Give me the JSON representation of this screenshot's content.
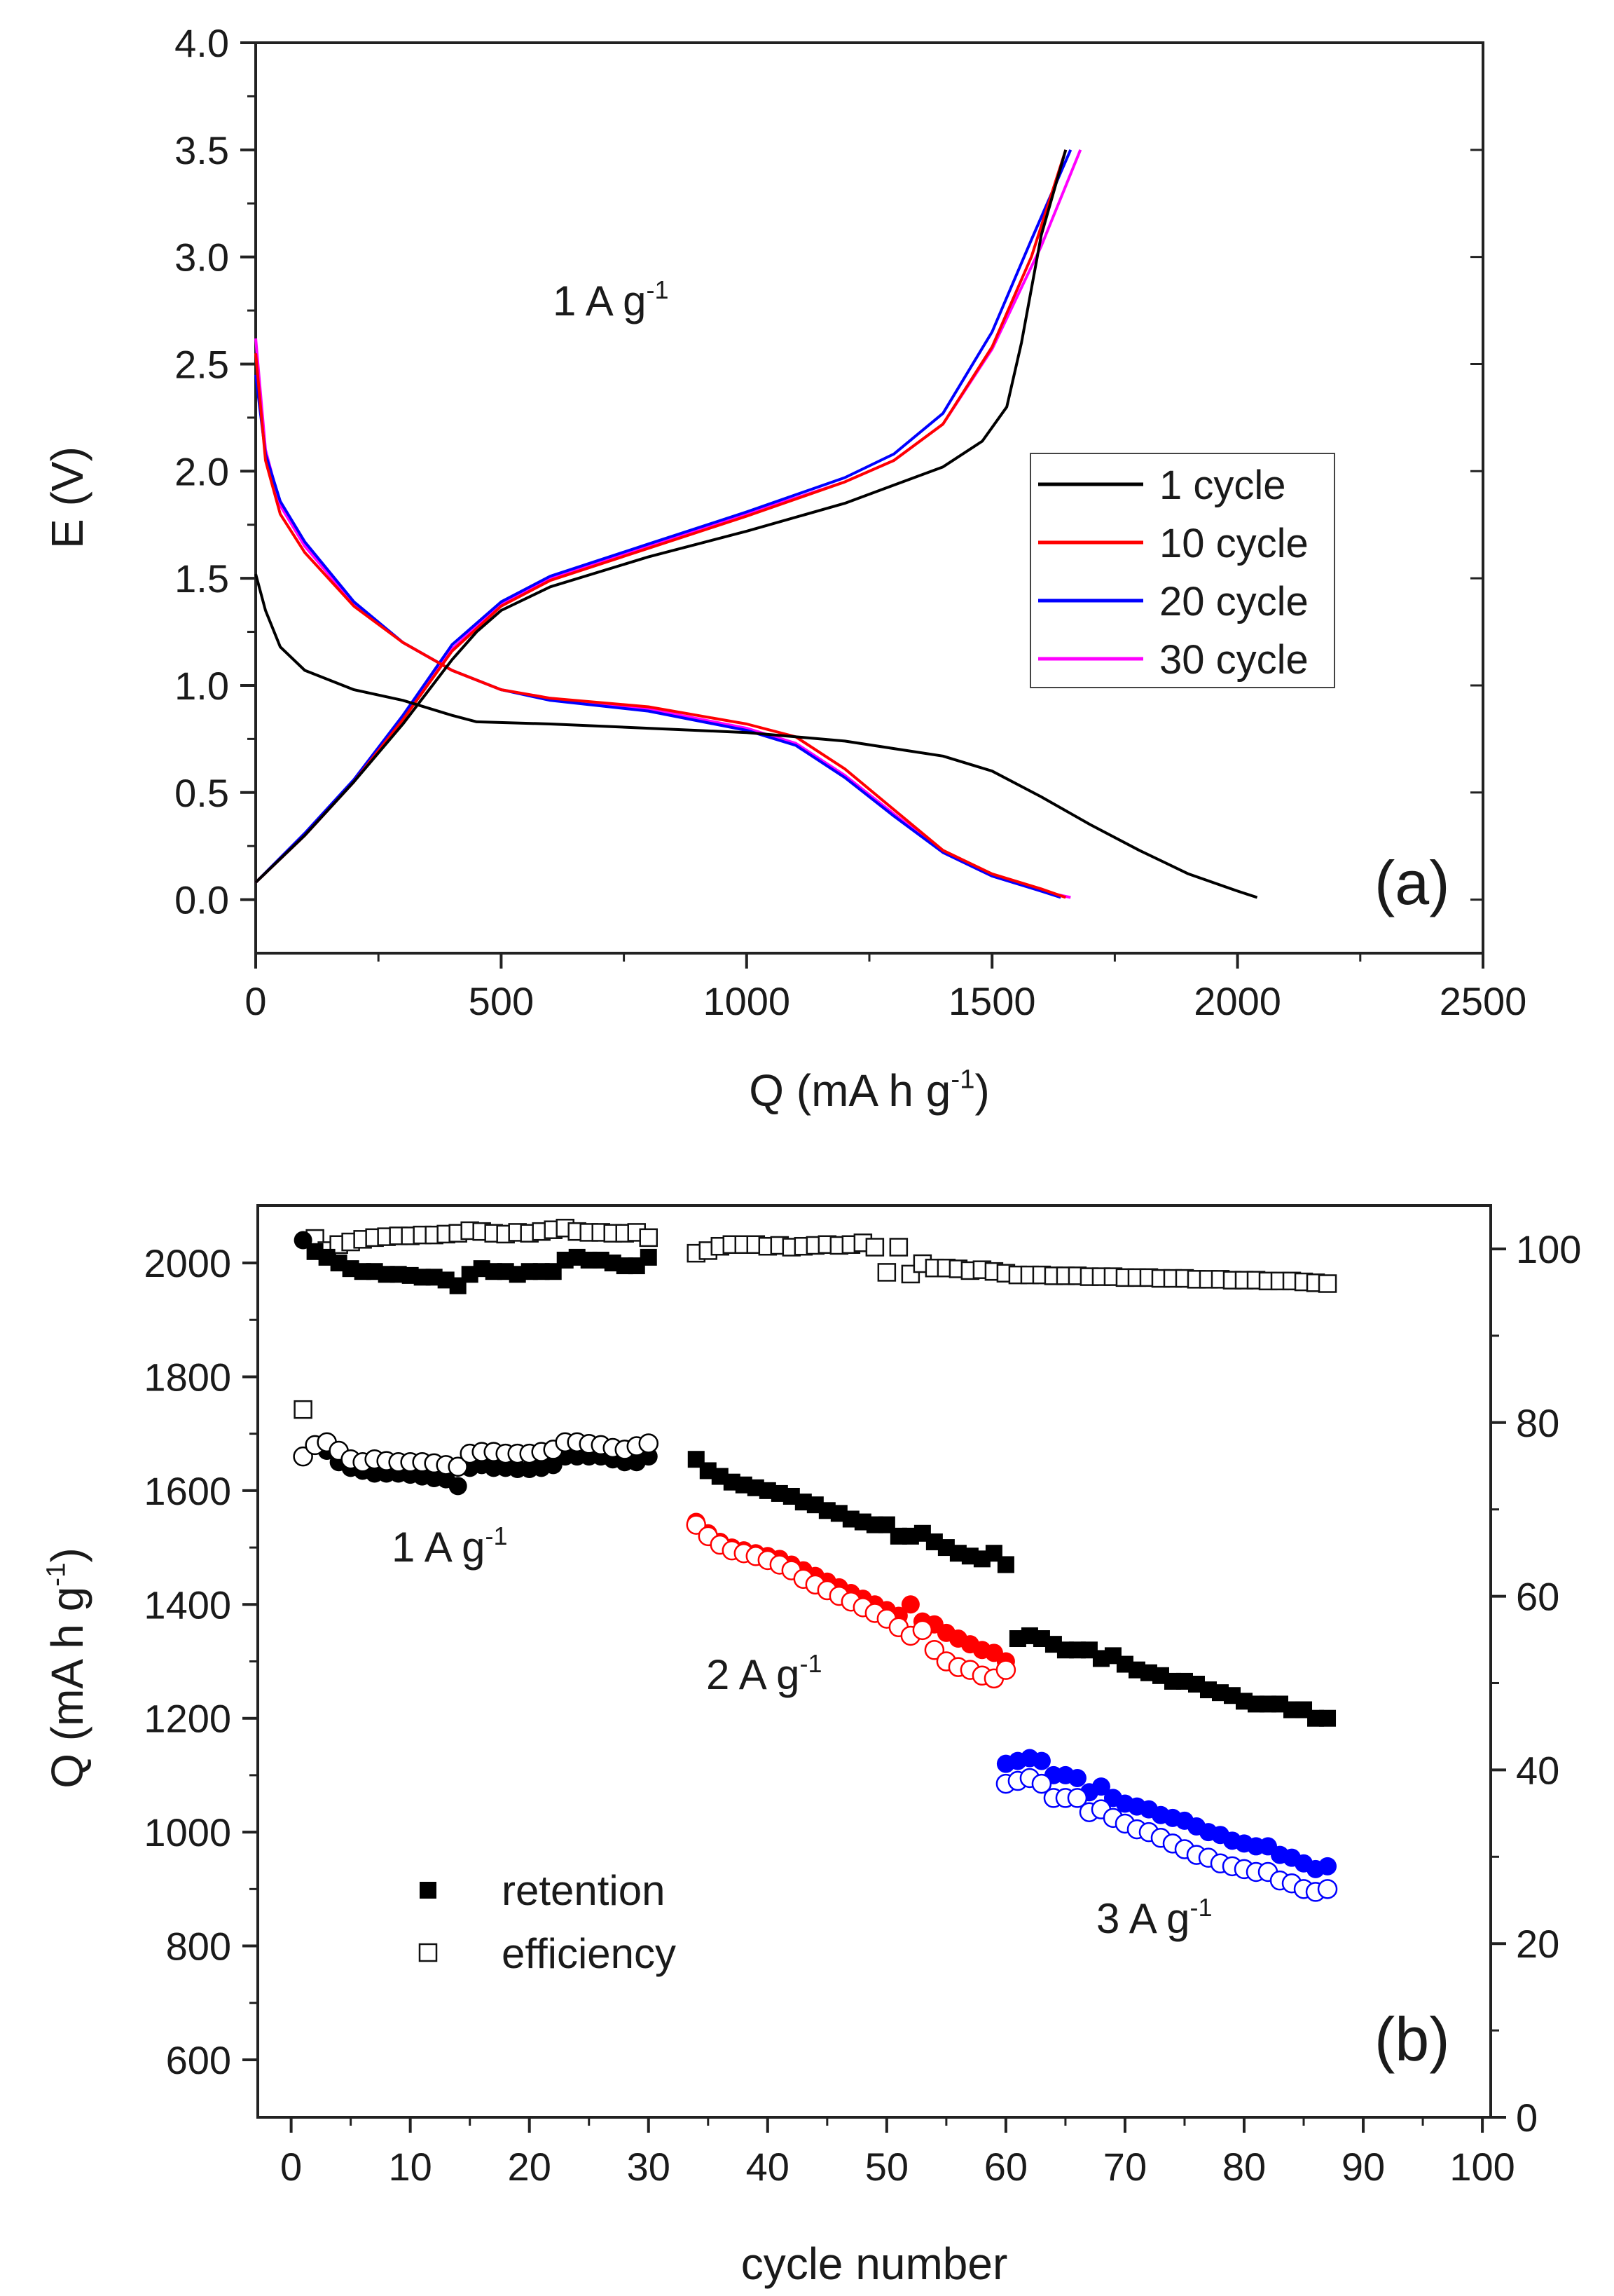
{
  "chart_data": [
    {
      "type": "line",
      "panel_label": "(a)",
      "xlabel": "Q (mA h g",
      "xlabel_sup": "-1",
      "xlabel_end": ")",
      "ylabel": "E (V)",
      "xlim": [
        0,
        2500
      ],
      "ylim": [
        -0.25,
        4.0
      ],
      "xticks": [
        0,
        500,
        1000,
        1500,
        2000,
        2500
      ],
      "yticks": [
        "0.0",
        "0.5",
        "1.0",
        "1.5",
        "2.0",
        "2.5",
        "3.0",
        "3.5",
        "4.0"
      ],
      "annotation": {
        "text": "1 A g",
        "sup": "-1"
      },
      "legend_position": "center-right",
      "series": [
        {
          "name": "1 cycle",
          "color": "#000000",
          "discharge": [
            [
              0,
              1.52
            ],
            [
              20,
              1.35
            ],
            [
              50,
              1.18
            ],
            [
              100,
              1.07
            ],
            [
              200,
              0.98
            ],
            [
              300,
              0.93
            ],
            [
              400,
              0.86
            ],
            [
              450,
              0.83
            ],
            [
              600,
              0.82
            ],
            [
              800,
              0.8
            ],
            [
              1000,
              0.78
            ],
            [
              1200,
              0.74
            ],
            [
              1400,
              0.67
            ],
            [
              1500,
              0.6
            ],
            [
              1600,
              0.48
            ],
            [
              1700,
              0.35
            ],
            [
              1800,
              0.23
            ],
            [
              1900,
              0.12
            ],
            [
              2000,
              0.04
            ],
            [
              2040,
              0.01
            ]
          ],
          "charge": [
            [
              0,
              0.08
            ],
            [
              100,
              0.3
            ],
            [
              200,
              0.55
            ],
            [
              300,
              0.82
            ],
            [
              400,
              1.12
            ],
            [
              450,
              1.25
            ],
            [
              500,
              1.35
            ],
            [
              600,
              1.46
            ],
            [
              800,
              1.6
            ],
            [
              1000,
              1.72
            ],
            [
              1200,
              1.85
            ],
            [
              1400,
              2.02
            ],
            [
              1480,
              2.14
            ],
            [
              1530,
              2.3
            ],
            [
              1560,
              2.6
            ],
            [
              1600,
              3.1
            ],
            [
              1650,
              3.5
            ]
          ]
        },
        {
          "name": "10 cycle",
          "color": "#ff0000",
          "discharge": [
            [
              0,
              2.55
            ],
            [
              20,
              2.05
            ],
            [
              50,
              1.8
            ],
            [
              100,
              1.62
            ],
            [
              200,
              1.37
            ],
            [
              300,
              1.2
            ],
            [
              400,
              1.07
            ],
            [
              500,
              0.98
            ],
            [
              600,
              0.94
            ],
            [
              800,
              0.9
            ],
            [
              1000,
              0.82
            ],
            [
              1100,
              0.76
            ],
            [
              1200,
              0.61
            ],
            [
              1300,
              0.42
            ],
            [
              1400,
              0.23
            ],
            [
              1500,
              0.12
            ],
            [
              1600,
              0.05
            ],
            [
              1650,
              0.01
            ]
          ],
          "charge": [
            [
              0,
              0.08
            ],
            [
              100,
              0.3
            ],
            [
              200,
              0.55
            ],
            [
              300,
              0.84
            ],
            [
              400,
              1.16
            ],
            [
              500,
              1.37
            ],
            [
              600,
              1.49
            ],
            [
              800,
              1.64
            ],
            [
              1000,
              1.79
            ],
            [
              1200,
              1.95
            ],
            [
              1300,
              2.05
            ],
            [
              1400,
              2.22
            ],
            [
              1500,
              2.58
            ],
            [
              1580,
              3.0
            ],
            [
              1650,
              3.5
            ]
          ]
        },
        {
          "name": "20 cycle",
          "color": "#0000ff",
          "discharge": [
            [
              0,
              2.45
            ],
            [
              20,
              2.08
            ],
            [
              50,
              1.86
            ],
            [
              100,
              1.67
            ],
            [
              200,
              1.39
            ],
            [
              300,
              1.2
            ],
            [
              400,
              1.07
            ],
            [
              500,
              0.98
            ],
            [
              600,
              0.93
            ],
            [
              800,
              0.88
            ],
            [
              1000,
              0.79
            ],
            [
              1100,
              0.72
            ],
            [
              1200,
              0.57
            ],
            [
              1300,
              0.39
            ],
            [
              1400,
              0.22
            ],
            [
              1500,
              0.11
            ],
            [
              1600,
              0.04
            ],
            [
              1640,
              0.01
            ]
          ],
          "charge": [
            [
              0,
              0.08
            ],
            [
              100,
              0.31
            ],
            [
              200,
              0.56
            ],
            [
              300,
              0.86
            ],
            [
              400,
              1.19
            ],
            [
              500,
              1.39
            ],
            [
              600,
              1.51
            ],
            [
              800,
              1.66
            ],
            [
              1000,
              1.81
            ],
            [
              1200,
              1.97
            ],
            [
              1300,
              2.08
            ],
            [
              1400,
              2.27
            ],
            [
              1500,
              2.65
            ],
            [
              1580,
              3.08
            ],
            [
              1660,
              3.5
            ]
          ]
        },
        {
          "name": "30 cycle",
          "color": "#ff00ff",
          "discharge": [
            [
              0,
              2.62
            ],
            [
              20,
              2.1
            ],
            [
              50,
              1.84
            ],
            [
              100,
              1.65
            ],
            [
              200,
              1.38
            ],
            [
              300,
              1.2
            ],
            [
              400,
              1.07
            ],
            [
              500,
              0.98
            ],
            [
              600,
              0.94
            ],
            [
              800,
              0.89
            ],
            [
              1000,
              0.8
            ],
            [
              1100,
              0.73
            ],
            [
              1200,
              0.58
            ],
            [
              1300,
              0.4
            ],
            [
              1400,
              0.22
            ],
            [
              1500,
              0.11
            ],
            [
              1600,
              0.04
            ],
            [
              1660,
              0.01
            ]
          ],
          "charge": [
            [
              0,
              0.08
            ],
            [
              100,
              0.3
            ],
            [
              200,
              0.55
            ],
            [
              300,
              0.85
            ],
            [
              400,
              1.17
            ],
            [
              500,
              1.38
            ],
            [
              600,
              1.5
            ],
            [
              800,
              1.65
            ],
            [
              1000,
              1.8
            ],
            [
              1200,
              1.95
            ],
            [
              1300,
              2.05
            ],
            [
              1400,
              2.22
            ],
            [
              1500,
              2.57
            ],
            [
              1600,
              3.05
            ],
            [
              1680,
              3.5
            ]
          ]
        }
      ]
    },
    {
      "type": "scatter",
      "panel_label": "(b)",
      "xlabel": "cycle number",
      "ylabel": "Q (mA h g",
      "ylabel_sup": "-1",
      "ylabel_end": ")",
      "xlim": [
        -2.8,
        100.7
      ],
      "ylim": [
        499,
        2101
      ],
      "y2lim": [
        0,
        105
      ],
      "xticks": [
        0,
        10,
        20,
        30,
        40,
        50,
        60,
        70,
        80,
        90,
        100
      ],
      "yticks": [
        600,
        800,
        1000,
        1200,
        1400,
        1600,
        1800,
        2000
      ],
      "y2ticks": [
        0,
        20,
        40,
        60,
        80,
        100
      ],
      "legend": [
        {
          "name": "retention",
          "marker": "filled-square"
        },
        {
          "name": "efficiency",
          "marker": "open-square"
        }
      ],
      "legend_position": "bottom-left",
      "annotations": [
        {
          "text": "1 A g",
          "sup": "-1"
        },
        {
          "text": "2 A g",
          "sup": "-1"
        },
        {
          "text": "3 A g",
          "sup": "-1"
        }
      ],
      "retention": {
        "color": "#000000",
        "segments": [
          {
            "x_start": 1,
            "values": [
              2040,
              2020,
              2010,
              2000,
              1990,
              1985,
              1985,
              1980,
              1980,
              1978,
              1975,
              1975,
              1970,
              1960,
              1980,
              1990,
              1985,
              1985,
              1980,
              1985,
              1985,
              1985,
              2005,
              2010,
              2005,
              2005,
              2000,
              1995,
              1995,
              2010
            ]
          },
          {
            "x_start": 34,
            "values": [
              1655,
              1635,
              1625,
              1615,
              1610,
              1605,
              1600,
              1595,
              1590,
              1580,
              1575,
              1565,
              1560,
              1550,
              1545,
              1540,
              1540,
              1520,
              1520,
              1525,
              1510,
              1500,
              1490,
              1485,
              1480,
              1490,
              1470
            ]
          },
          {
            "x_start": 61,
            "values": [
              1340,
              1345,
              1340,
              1330,
              1320,
              1320,
              1320,
              1305,
              1310,
              1295,
              1285,
              1280,
              1275,
              1265,
              1265,
              1260,
              1250,
              1245,
              1240,
              1230,
              1225,
              1225,
              1225,
              1215,
              1215,
              1200,
              1200
            ]
          }
        ]
      },
      "efficiency_percent": {
        "color": "#000000",
        "segments": [
          {
            "x_start": 1,
            "values": [
              81.5,
              101.2,
              99.8,
              100.5,
              100.8,
              101.1,
              101.3,
              101.4,
              101.5,
              101.5,
              101.6,
              101.6,
              101.7,
              101.8,
              102.1,
              102.0,
              101.8,
              101.7,
              101.9,
              101.8,
              102.0,
              102.2,
              102.4,
              102.0,
              101.9,
              101.9,
              101.8,
              101.8,
              101.9,
              101.3
            ]
          },
          {
            "x_start": 34,
            "values": [
              99.5,
              99.8,
              100.3,
              100.5,
              100.5,
              100.5,
              100.3,
              100.4,
              100.2,
              100.3,
              100.4,
              100.5,
              100.4,
              100.5,
              100.7,
              100.2,
              97.3,
              100.2,
              97.1,
              98.3,
              97.8,
              97.8,
              97.7,
              97.5,
              97.6,
              97.4,
              97.2
            ]
          },
          {
            "x_start": 61,
            "values": [
              97.0,
              97.0,
              97.0,
              96.9,
              96.9,
              96.9,
              96.8,
              96.8,
              96.8,
              96.7,
              96.7,
              96.7,
              96.6,
              96.6,
              96.6,
              96.5,
              96.5,
              96.5,
              96.4,
              96.4,
              96.4,
              96.3,
              96.3,
              96.3,
              96.2,
              96.1,
              96.0
            ]
          }
        ]
      },
      "capacity_groups": [
        {
          "rate": "1 A g-1",
          "color": "#000000",
          "x_start": 1,
          "filled": [
            2040,
            1680,
            1670,
            1650,
            1640,
            1635,
            1630,
            1630,
            1630,
            1628,
            1625,
            1622,
            1620,
            1608,
            1640,
            1645,
            1640,
            1640,
            1638,
            1638,
            1640,
            1645,
            1660,
            1660,
            1660,
            1660,
            1655,
            1650,
            1650,
            1660
          ],
          "open": [
            1660,
            1680,
            1685,
            1670,
            1655,
            1650,
            1655,
            1652,
            1650,
            1650,
            1650,
            1648,
            1645,
            1642,
            1665,
            1668,
            1668,
            1665,
            1665,
            1665,
            1668,
            1672,
            1685,
            1685,
            1682,
            1680,
            1675,
            1672,
            1678,
            1683
          ]
        },
        {
          "rate": "2 A g-1",
          "color": "#ff0000",
          "x_start": 34,
          "filled": [
            1545,
            1525,
            1510,
            1500,
            1495,
            1490,
            1485,
            1480,
            1470,
            1460,
            1450,
            1440,
            1430,
            1420,
            1410,
            1400,
            1390,
            1380,
            1400,
            1370,
            1365,
            1350,
            1340,
            1330,
            1320,
            1315,
            1300
          ],
          "open": [
            1540,
            1520,
            1505,
            1495,
            1490,
            1485,
            1478,
            1470,
            1460,
            1445,
            1435,
            1425,
            1415,
            1405,
            1395,
            1385,
            1375,
            1360,
            1345,
            1355,
            1320,
            1300,
            1290,
            1285,
            1275,
            1270,
            1285
          ]
        },
        {
          "rate": "3 A g-1",
          "color": "#0000ff",
          "x_start": 60,
          "filled": [
            1120,
            1125,
            1130,
            1125,
            1100,
            1100,
            1095,
            1070,
            1080,
            1060,
            1050,
            1045,
            1040,
            1030,
            1025,
            1020,
            1010,
            1000,
            995,
            985,
            980,
            975,
            975,
            960,
            955,
            945,
            935,
            940
          ],
          "open": [
            1085,
            1090,
            1095,
            1085,
            1060,
            1060,
            1060,
            1035,
            1040,
            1025,
            1015,
            1005,
            1000,
            990,
            980,
            970,
            960,
            955,
            945,
            940,
            935,
            930,
            930,
            915,
            910,
            900,
            895,
            900
          ]
        }
      ]
    }
  ]
}
